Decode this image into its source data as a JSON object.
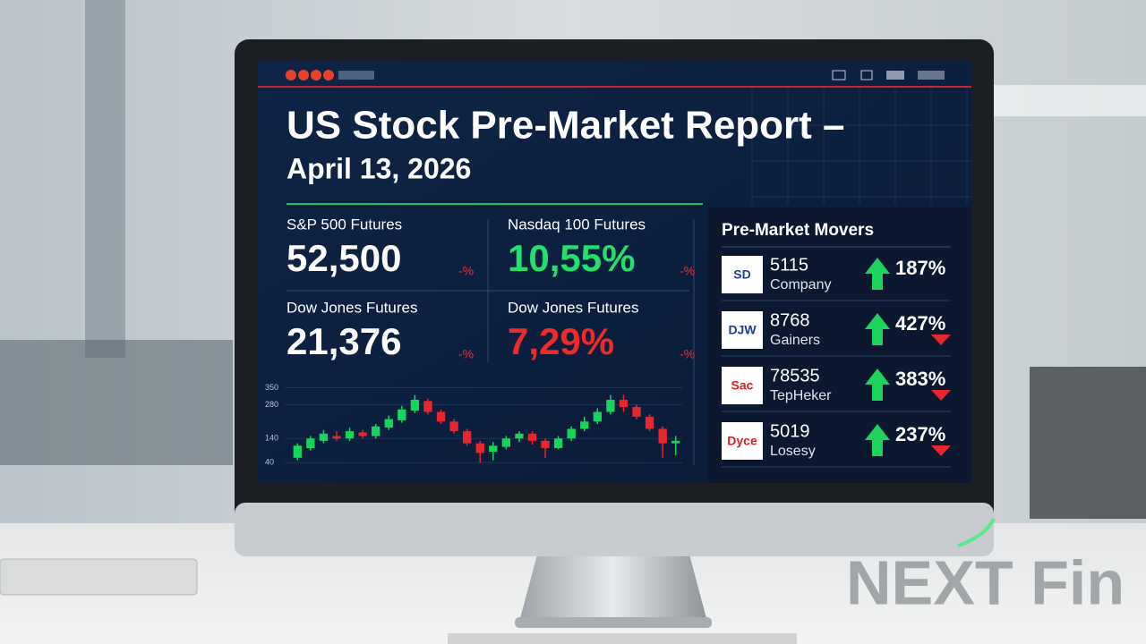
{
  "header": {
    "title": "US Stock Pre-Market Report –",
    "subtitle": "April 13, 2026"
  },
  "tiles": [
    {
      "label": "S&P 500 Futures",
      "value": "52,500",
      "change": "-%"
    },
    {
      "label": "Nasdaq 100 Futures",
      "value": "10,55%",
      "change": "-%"
    },
    {
      "label": "Dow Jones Futures",
      "value": "21,376",
      "change": "-%"
    },
    {
      "label": "Dow Jones Futures",
      "value": "7,29%",
      "change": "-%"
    }
  ],
  "movers": {
    "title": "Pre-Market Movers",
    "rows": [
      {
        "logo": "SD",
        "price": "5115",
        "name": "Company",
        "change": "187%"
      },
      {
        "logo": "DJW",
        "price": "8768",
        "name": "Gainers",
        "change": "427%"
      },
      {
        "logo": "Sac",
        "price": "78535",
        "name": "TepHeker",
        "change": "383%"
      },
      {
        "logo": "Dyce",
        "price": "5019",
        "name": "Losesy",
        "change": "237%"
      }
    ]
  },
  "chart_data": {
    "type": "candlestick",
    "ylim": [
      0,
      400
    ],
    "yticks": [
      40,
      140,
      280,
      350
    ],
    "up_color": "#19d45a",
    "down_color": "#e8262b",
    "open": [
      60,
      100,
      130,
      150,
      140,
      165,
      150,
      185,
      215,
      255,
      295,
      250,
      210,
      170,
      120,
      85,
      105,
      140,
      160,
      130,
      100,
      140,
      180,
      210,
      250,
      300,
      270,
      230,
      180,
      120
    ],
    "close": [
      110,
      140,
      160,
      140,
      170,
      150,
      190,
      220,
      260,
      300,
      250,
      210,
      170,
      120,
      80,
      110,
      140,
      160,
      130,
      100,
      140,
      180,
      210,
      250,
      300,
      270,
      230,
      180,
      120,
      130
    ],
    "high": [
      120,
      150,
      175,
      170,
      185,
      175,
      200,
      235,
      275,
      320,
      305,
      260,
      220,
      180,
      130,
      125,
      150,
      170,
      170,
      140,
      150,
      190,
      230,
      265,
      320,
      320,
      280,
      240,
      190,
      150
    ],
    "low": [
      50,
      90,
      120,
      130,
      130,
      140,
      140,
      175,
      205,
      245,
      240,
      200,
      160,
      110,
      40,
      50,
      95,
      125,
      115,
      60,
      95,
      130,
      170,
      200,
      240,
      250,
      220,
      170,
      60,
      70
    ]
  },
  "watermark": "NEXT Fin"
}
